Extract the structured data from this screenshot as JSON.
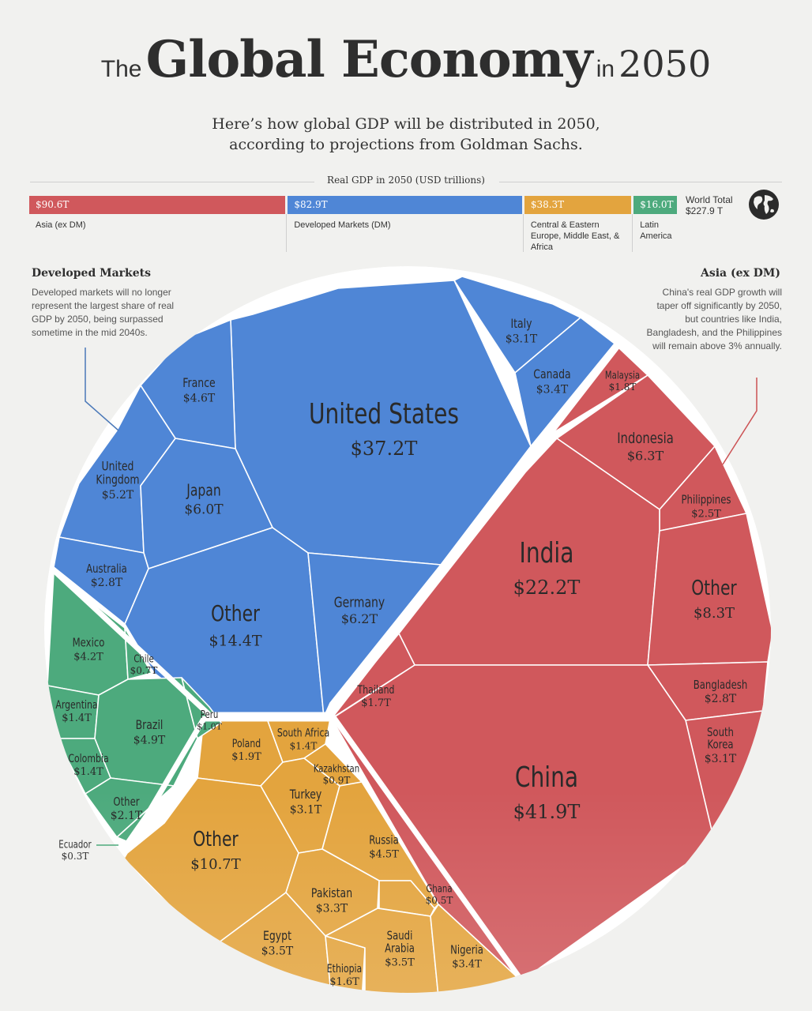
{
  "header": {
    "title_the": "The",
    "title_main": "Global Economy",
    "title_in": "in",
    "title_year": "2050",
    "subtitle_line1": "Here’s how global GDP will be distributed in 2050,",
    "subtitle_line2": "according to projections from Goldman Sachs."
  },
  "gdp_bar": {
    "title": "Real GDP in 2050 (USD trillions)",
    "segments": [
      {
        "value": 90.6,
        "value_label": "$90.6T",
        "label": "Asia (ex DM)",
        "color": "#d0585c"
      },
      {
        "value": 82.9,
        "value_label": "$82.9T",
        "label": "Developed Markets (DM)",
        "color": "#4f86d6"
      },
      {
        "value": 38.3,
        "value_label": "$38.3T",
        "label": "Central & Eastern Europe, Middle East, & Africa",
        "color": "#e3a43e"
      },
      {
        "value": 16.0,
        "value_label": "$16.0T",
        "label": "Latin America",
        "color": "#4daa7d"
      }
    ],
    "world_total_label": "World Total",
    "world_total_value": "$227.9 T",
    "globe_icon": "globe-icon"
  },
  "annotations": {
    "developed": {
      "title": "Developed Markets",
      "text": "Developed markets will no longer represent the largest share of real GDP by 2050, being surpassed sometime in the mid 2040s."
    },
    "asia": {
      "title": "Asia (ex DM)",
      "text": "China's real GDP growth will taper off significantly by 2050, but countries like India, Bangladesh, and the Philippines will remain above 3% annually."
    }
  },
  "colors": {
    "developed": "#4f86d6",
    "asia": "#d0585c",
    "ceemea": "#e3a43e",
    "latam": "#4daa7d",
    "background": "#f1f1ef"
  },
  "chart_data": {
    "type": "voronoi-treemap",
    "unit": "USD trillions",
    "groups": [
      {
        "name": "Developed Markets",
        "items": [
          {
            "name": "United States",
            "value": 37.2,
            "label": "$37.2T"
          },
          {
            "name": "Other",
            "value": 14.4,
            "label": "$14.4T"
          },
          {
            "name": "Germany",
            "value": 6.2,
            "label": "$6.2T"
          },
          {
            "name": "Japan",
            "value": 6.0,
            "label": "$6.0T"
          },
          {
            "name": "United Kingdom",
            "value": 5.2,
            "label": "$5.2T"
          },
          {
            "name": "France",
            "value": 4.6,
            "label": "$4.6T"
          },
          {
            "name": "Canada",
            "value": 3.4,
            "label": "$3.4T"
          },
          {
            "name": "Italy",
            "value": 3.1,
            "label": "$3.1T"
          },
          {
            "name": "Australia",
            "value": 2.8,
            "label": "$2.8T"
          }
        ]
      },
      {
        "name": "Asia (ex DM)",
        "items": [
          {
            "name": "China",
            "value": 41.9,
            "label": "$41.9T"
          },
          {
            "name": "India",
            "value": 22.2,
            "label": "$22.2T"
          },
          {
            "name": "Other",
            "value": 8.3,
            "label": "$8.3T"
          },
          {
            "name": "Indonesia",
            "value": 6.3,
            "label": "$6.3T"
          },
          {
            "name": "South Korea",
            "value": 3.1,
            "label": "$3.1T"
          },
          {
            "name": "Bangladesh",
            "value": 2.8,
            "label": "$2.8T"
          },
          {
            "name": "Philippines",
            "value": 2.5,
            "label": "$2.5T"
          },
          {
            "name": "Malaysia",
            "value": 1.8,
            "label": "$1.8T"
          },
          {
            "name": "Thailand",
            "value": 1.7,
            "label": "$1.7T"
          }
        ]
      },
      {
        "name": "Central & Eastern Europe, Middle East, & Africa",
        "items": [
          {
            "name": "Other",
            "value": 10.7,
            "label": "$10.7T"
          },
          {
            "name": "Russia",
            "value": 4.5,
            "label": "$4.5T"
          },
          {
            "name": "Egypt",
            "value": 3.5,
            "label": "$3.5T"
          },
          {
            "name": "Saudi Arabia",
            "value": 3.5,
            "label": "$3.5T"
          },
          {
            "name": "Nigeria",
            "value": 3.4,
            "label": "$3.4T"
          },
          {
            "name": "Pakistan",
            "value": 3.3,
            "label": "$3.3T"
          },
          {
            "name": "Turkey",
            "value": 3.1,
            "label": "$3.1T"
          },
          {
            "name": "Poland",
            "value": 1.9,
            "label": "$1.9T"
          },
          {
            "name": "Ethiopia",
            "value": 1.6,
            "label": "$1.6T"
          },
          {
            "name": "South Africa",
            "value": 1.4,
            "label": "$1.4T"
          },
          {
            "name": "Kazakhstan",
            "value": 0.9,
            "label": "$0.9T"
          },
          {
            "name": "Ghana",
            "value": 0.5,
            "label": "$0.5T"
          }
        ]
      },
      {
        "name": "Latin America",
        "items": [
          {
            "name": "Brazil",
            "value": 4.9,
            "label": "$4.9T"
          },
          {
            "name": "Mexico",
            "value": 4.2,
            "label": "$4.2T"
          },
          {
            "name": "Other",
            "value": 2.1,
            "label": "$2.1T"
          },
          {
            "name": "Argentina",
            "value": 1.4,
            "label": "$1.4T"
          },
          {
            "name": "Colombia",
            "value": 1.4,
            "label": "$1.4T"
          },
          {
            "name": "Peru",
            "value": 1.0,
            "label": "$1.0T"
          },
          {
            "name": "Chile",
            "value": 0.7,
            "label": "$0.7T"
          },
          {
            "name": "Ecuador",
            "value": 0.3,
            "label": "$0.3T"
          }
        ]
      }
    ]
  }
}
